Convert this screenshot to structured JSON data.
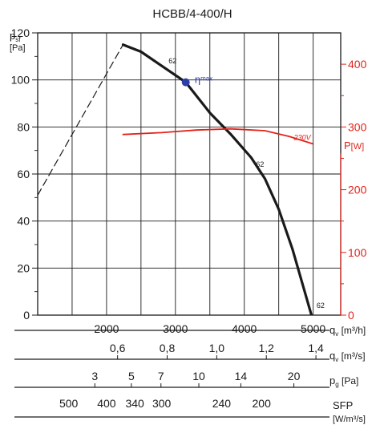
{
  "chart_data": {
    "type": "line",
    "title": "HCBB/4-400/H",
    "ylabel_main": "p",
    "ylabel_sub": "sf",
    "ylabel_unit": "[Pa]",
    "y2label_main": "P",
    "y2label_unit": "[W]",
    "xlim": [
      1000,
      5400
    ],
    "ylim": [
      0,
      120
    ],
    "y2lim": [
      0,
      450
    ],
    "y_ticks": [
      0,
      20,
      40,
      60,
      80,
      100,
      120
    ],
    "y_tick_labels": [
      "0",
      "20",
      "40",
      "60",
      "80",
      "100",
      "120"
    ],
    "y2_ticks": [
      0,
      100,
      200,
      300,
      400
    ],
    "y2_tick_labels": [
      "0",
      "100",
      "200",
      "300",
      "400"
    ],
    "x_gridlines": [
      1500,
      2000,
      2500,
      3000,
      3500,
      4000,
      4500,
      5000
    ],
    "grid": true,
    "series": [
      {
        "key": "pressure",
        "color": "#1a1a1a",
        "x": [
          2240,
          2500,
          2800,
          3150,
          3500,
          3800,
          4100,
          4300,
          4500,
          4700,
          4975
        ],
        "y": [
          115,
          112,
          106,
          99,
          86,
          77,
          67,
          58,
          45,
          28,
          0
        ]
      },
      {
        "key": "pressure_extension",
        "color": "#1a1a1a",
        "dashed": true,
        "x": [
          1000,
          2240
        ],
        "y": [
          51,
          115
        ]
      },
      {
        "key": "power",
        "color": "#e2231a",
        "axis": "y2",
        "name": "230V",
        "x": [
          2240,
          2800,
          3300,
          3800,
          4300,
          4650,
          5000
        ],
        "y": [
          288,
          291,
          295,
          297,
          294,
          285,
          273
        ]
      }
    ],
    "annotations": [
      {
        "text": "62",
        "x": 2900,
        "y": 107
      },
      {
        "text": "62",
        "x": 4170,
        "y": 63
      },
      {
        "text": "62",
        "x": 5050,
        "y": 3
      },
      {
        "text": "η",
        "sub": "max",
        "x": 3280,
        "y": 100
      }
    ],
    "eta_max_point": {
      "x": 3150,
      "y": 99
    },
    "scales": [
      {
        "label_main": "q",
        "label_sub": "v",
        "label_unit": "[m³/h]",
        "ticks": [
          {
            "x": 2000,
            "label": "2000"
          },
          {
            "x": 3000,
            "label": "3000"
          },
          {
            "x": 4000,
            "label": "4000"
          },
          {
            "x": 5000,
            "label": "5000"
          }
        ]
      },
      {
        "label_main": "q",
        "label_sub": "v",
        "label_unit": "[m³/s]",
        "ticks": [
          {
            "x": 2160,
            "label": "0,6"
          },
          {
            "x": 2880,
            "label": "0,8"
          },
          {
            "x": 3600,
            "label": "1,0"
          },
          {
            "x": 4320,
            "label": "1,2"
          },
          {
            "x": 5040,
            "label": "1,4"
          }
        ]
      },
      {
        "label_main": "p",
        "label_sub": "g",
        "label_unit": "[Pa]",
        "ticks": [
          {
            "x": 1830,
            "label": "3"
          },
          {
            "x": 2360,
            "label": "5"
          },
          {
            "x": 2790,
            "label": "7"
          },
          {
            "x": 3340,
            "label": "10"
          },
          {
            "x": 3950,
            "label": "14"
          },
          {
            "x": 4720,
            "label": "20"
          }
        ]
      },
      {
        "label_main": "SFP",
        "label_unit": "[W/m³/s]",
        "ticks": [
          {
            "x": 1450,
            "label": "500"
          },
          {
            "x": 2000,
            "label": "400"
          },
          {
            "x": 2410,
            "label": "340"
          },
          {
            "x": 2800,
            "label": "300"
          },
          {
            "x": 3670,
            "label": "240"
          },
          {
            "x": 4250,
            "label": "200"
          }
        ]
      }
    ]
  }
}
